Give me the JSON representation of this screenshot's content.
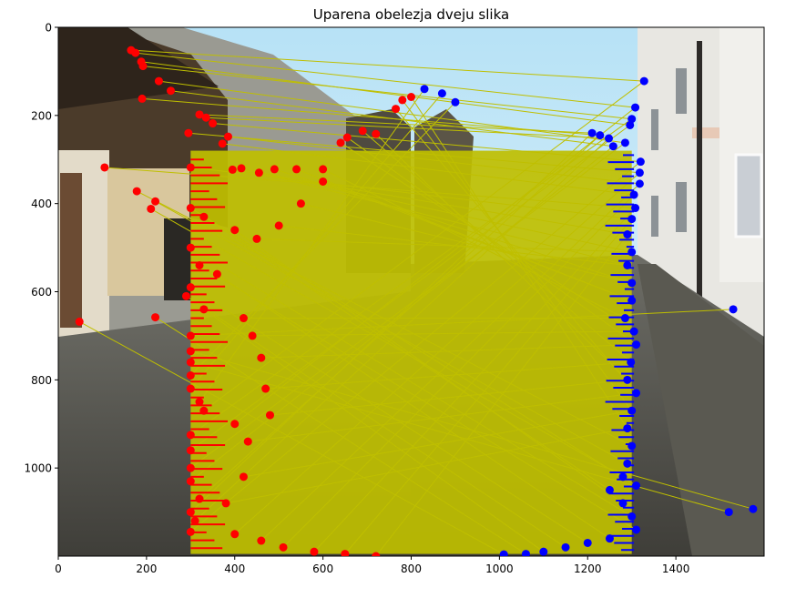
{
  "chart_data": {
    "type": "scatter",
    "title": "Uparena obelezja dveju slika",
    "xlabel": "",
    "ylabel": "",
    "xlim": [
      0,
      1600
    ],
    "ylim": [
      1200,
      0
    ],
    "y_inverted": true,
    "x_ticks": [
      0,
      200,
      400,
      600,
      800,
      1000,
      1200,
      1400
    ],
    "y_ticks": [
      0,
      200,
      400,
      600,
      800,
      1000
    ],
    "grid": false,
    "legend": "none",
    "background_images": [
      {
        "name": "left photo",
        "x_range": [
          0,
          800
        ],
        "y_range": [
          0,
          1200
        ]
      },
      {
        "name": "right photo",
        "x_range": [
          800,
          1600
        ],
        "y_range": [
          0,
          1200
        ]
      }
    ],
    "colors": {
      "left_points": "#ff0000",
      "right_points": "#0000ff",
      "match_lines": "#bfbf00"
    },
    "series": [
      {
        "label": "left keypoints",
        "color": "#ff0000",
        "points": [
          [
            165,
            52
          ],
          [
            175,
            58
          ],
          [
            192,
            88
          ],
          [
            188,
            78
          ],
          [
            228,
            122
          ],
          [
            255,
            144
          ],
          [
            190,
            162
          ],
          [
            320,
            198
          ],
          [
            335,
            205
          ],
          [
            350,
            218
          ],
          [
            295,
            240
          ],
          [
            385,
            248
          ],
          [
            372,
            264
          ],
          [
            105,
            318
          ],
          [
            300,
            318
          ],
          [
            395,
            323
          ],
          [
            415,
            320
          ],
          [
            455,
            330
          ],
          [
            490,
            322
          ],
          [
            540,
            322
          ],
          [
            600,
            322
          ],
          [
            640,
            262
          ],
          [
            655,
            250
          ],
          [
            690,
            235
          ],
          [
            720,
            242
          ],
          [
            765,
            185
          ],
          [
            780,
            165
          ],
          [
            800,
            158
          ],
          [
            178,
            372
          ],
          [
            220,
            395
          ],
          [
            210,
            412
          ],
          [
            300,
            410
          ],
          [
            330,
            430
          ],
          [
            400,
            460
          ],
          [
            300,
            500
          ],
          [
            320,
            540
          ],
          [
            360,
            560
          ],
          [
            300,
            590
          ],
          [
            290,
            610
          ],
          [
            330,
            640
          ],
          [
            220,
            658
          ],
          [
            48,
            668
          ],
          [
            300,
            700
          ],
          [
            300,
            735
          ],
          [
            300,
            760
          ],
          [
            300,
            790
          ],
          [
            300,
            820
          ],
          [
            320,
            850
          ],
          [
            330,
            870
          ],
          [
            400,
            900
          ],
          [
            300,
            925
          ],
          [
            300,
            960
          ],
          [
            300,
            1000
          ],
          [
            300,
            1030
          ],
          [
            320,
            1070
          ],
          [
            300,
            1100
          ],
          [
            310,
            1120
          ],
          [
            300,
            1145
          ],
          [
            400,
            1150
          ],
          [
            460,
            1165
          ],
          [
            510,
            1180
          ],
          [
            580,
            1190
          ],
          [
            650,
            1195
          ],
          [
            720,
            1200
          ],
          [
            450,
            480
          ],
          [
            500,
            450
          ],
          [
            550,
            400
          ],
          [
            600,
            350
          ],
          [
            420,
            660
          ],
          [
            440,
            700
          ],
          [
            460,
            750
          ],
          [
            470,
            820
          ],
          [
            480,
            880
          ],
          [
            430,
            940
          ],
          [
            420,
            1020
          ],
          [
            380,
            1080
          ]
        ]
      },
      {
        "label": "right keypoints",
        "color": "#0000ff",
        "points": [
          [
            1328,
            122
          ],
          [
            1308,
            182
          ],
          [
            1300,
            208
          ],
          [
            1296,
            222
          ],
          [
            1285,
            262
          ],
          [
            1258,
            270
          ],
          [
            1228,
            245
          ],
          [
            1210,
            240
          ],
          [
            1248,
            252
          ],
          [
            1320,
            305
          ],
          [
            1318,
            330
          ],
          [
            1318,
            355
          ],
          [
            1305,
            380
          ],
          [
            1308,
            410
          ],
          [
            1300,
            435
          ],
          [
            1290,
            470
          ],
          [
            1300,
            510
          ],
          [
            1290,
            540
          ],
          [
            1300,
            580
          ],
          [
            1300,
            620
          ],
          [
            1285,
            660
          ],
          [
            1305,
            690
          ],
          [
            1310,
            720
          ],
          [
            1298,
            760
          ],
          [
            1290,
            800
          ],
          [
            1310,
            830
          ],
          [
            1300,
            870
          ],
          [
            1290,
            910
          ],
          [
            1300,
            950
          ],
          [
            1290,
            990
          ],
          [
            1280,
            1020
          ],
          [
            1310,
            1040
          ],
          [
            1250,
            1050
          ],
          [
            1280,
            1080
          ],
          [
            1300,
            1110
          ],
          [
            1310,
            1140
          ],
          [
            1250,
            1160
          ],
          [
            1200,
            1170
          ],
          [
            1150,
            1180
          ],
          [
            1100,
            1190
          ],
          [
            1060,
            1195
          ],
          [
            1010,
            1196
          ],
          [
            1530,
            640
          ],
          [
            1575,
            1093
          ],
          [
            1520,
            1100
          ],
          [
            900,
            170
          ],
          [
            870,
            150
          ],
          [
            830,
            140
          ]
        ]
      }
    ]
  }
}
